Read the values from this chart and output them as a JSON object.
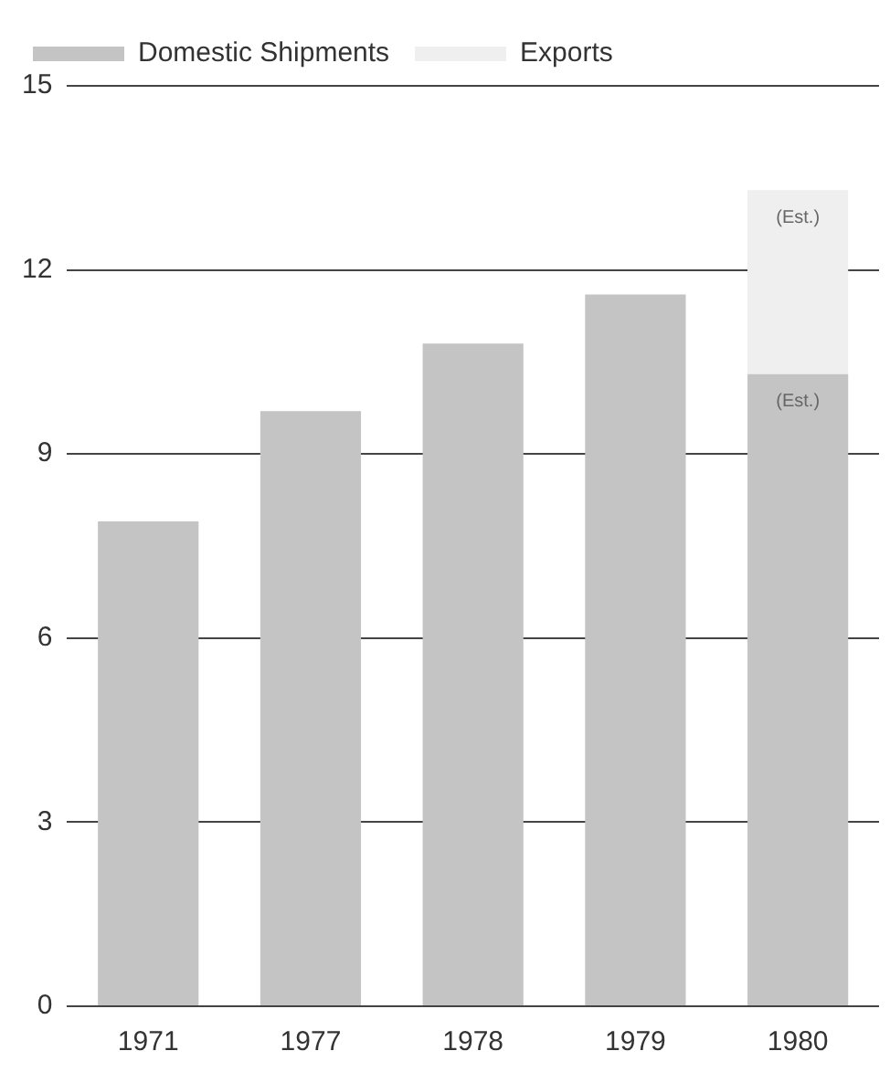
{
  "chart_data": {
    "type": "bar",
    "categories": [
      "1971",
      "1977",
      "1978",
      "1979",
      "1980"
    ],
    "stacked": true,
    "series": [
      {
        "name": "Domestic Shipments",
        "color": "#c4c4c4",
        "values": [
          7.9,
          9.7,
          10.8,
          11.6,
          10.3
        ]
      },
      {
        "name": "Exports",
        "color": "#efefef",
        "values": [
          null,
          null,
          null,
          null,
          3.0
        ]
      }
    ],
    "ylim": [
      0,
      15
    ],
    "yticks": [
      0,
      3,
      6,
      9,
      12,
      15
    ],
    "grid": "y",
    "legend": "top left",
    "annotations": [
      {
        "text": "(Est.)",
        "x": "1980",
        "y": 10.3
      },
      {
        "text": "(Est.)",
        "x": "1980",
        "y": 13.3
      }
    ]
  }
}
